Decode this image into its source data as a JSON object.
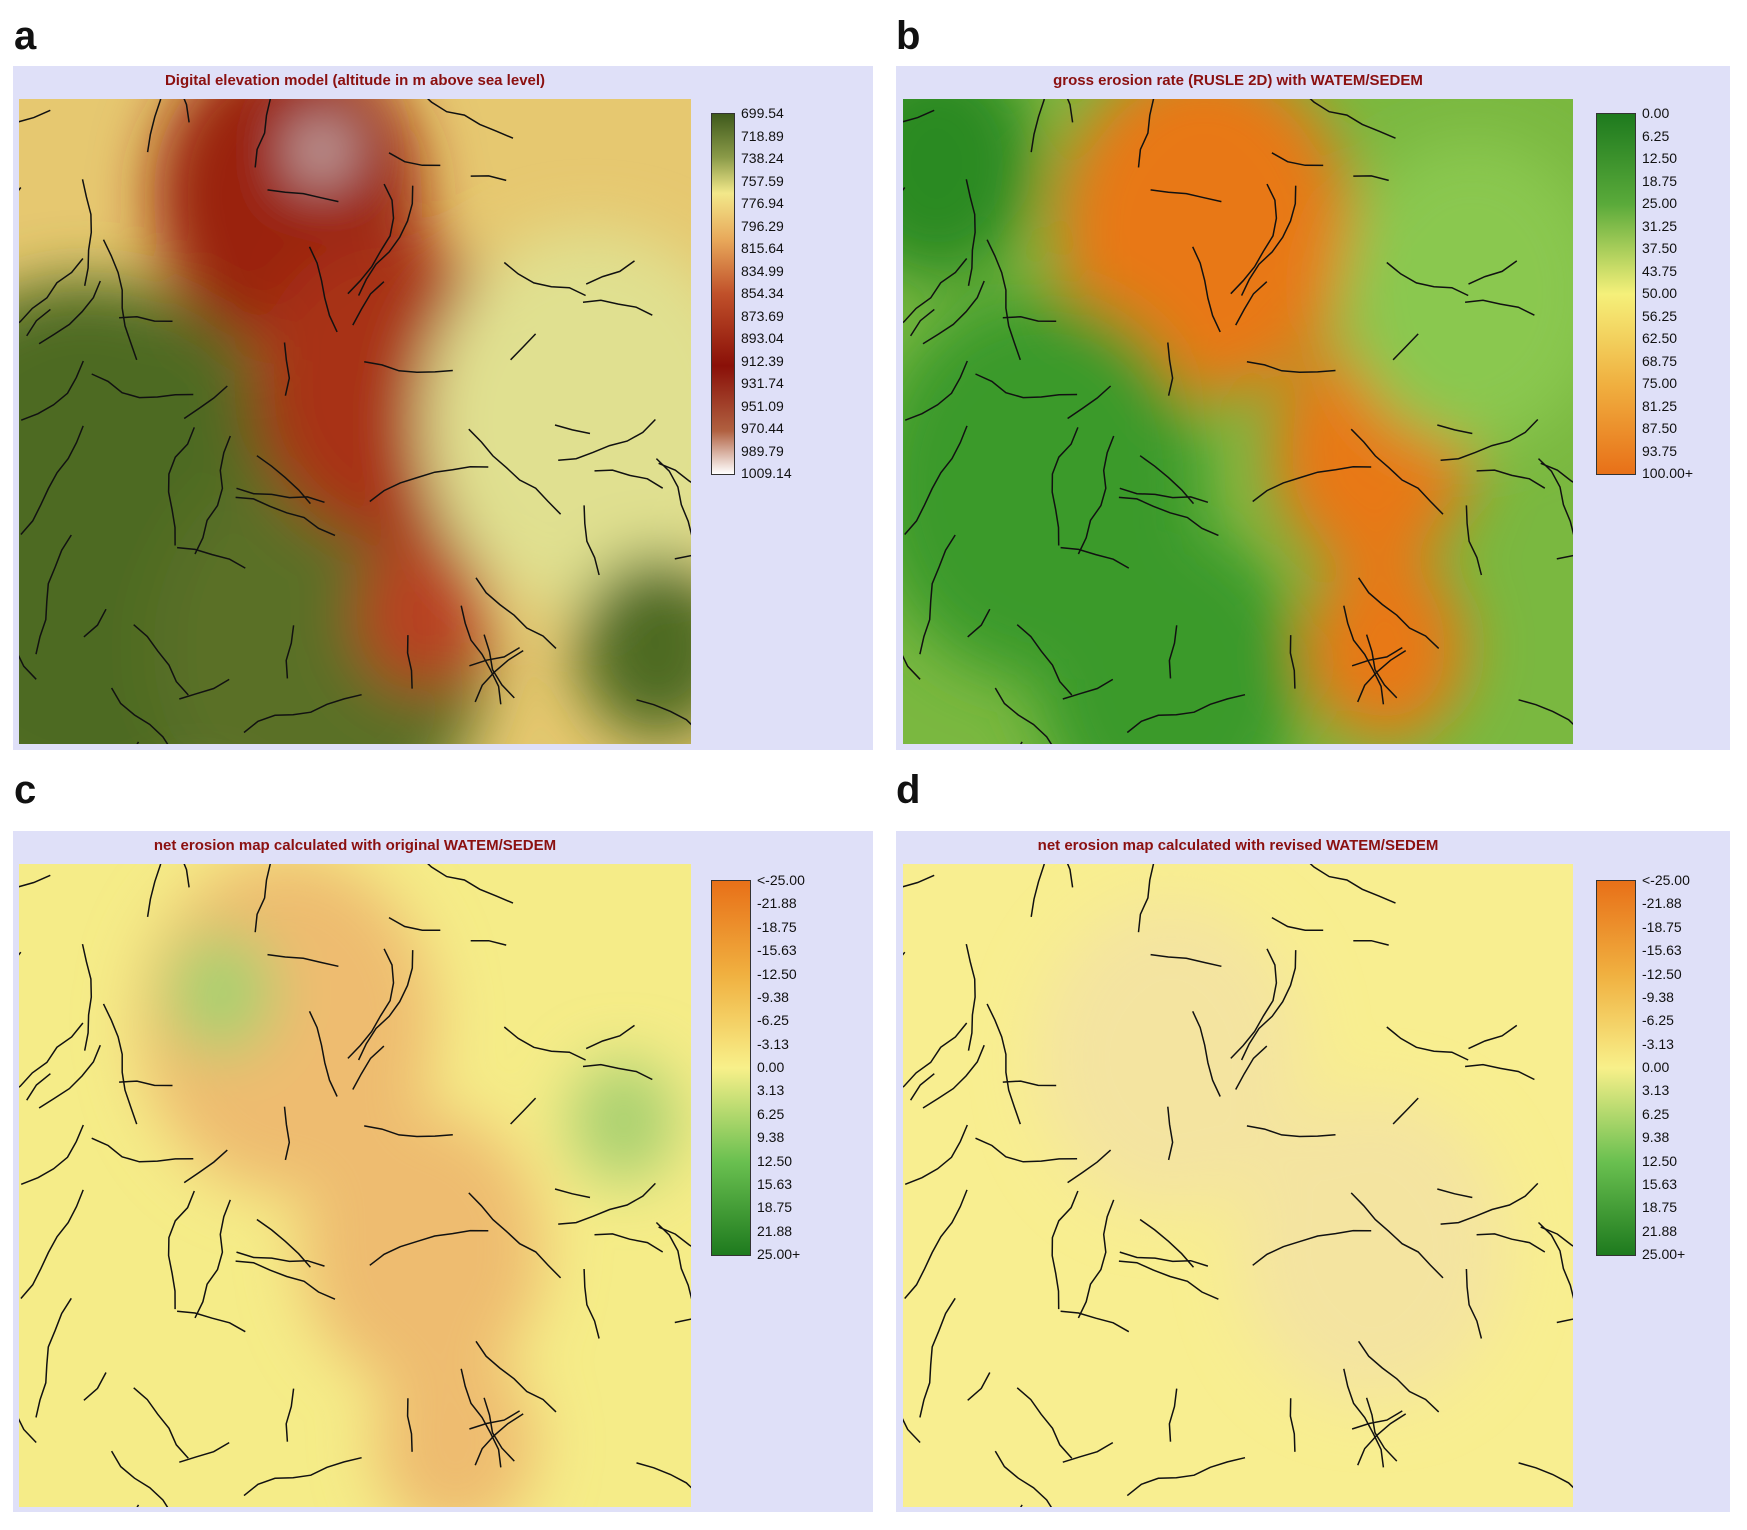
{
  "panels": [
    {
      "letter": "a",
      "title": "Digital elevation model (altitude in m above sea level)",
      "legend": [
        "699.54",
        "718.89",
        "738.24",
        "757.59",
        "776.94",
        "796.29",
        "815.64",
        "834.99",
        "854.34",
        "873.69",
        "893.04",
        "912.39",
        "931.74",
        "951.09",
        "970.44",
        "989.79",
        "1009.14"
      ]
    },
    {
      "letter": "b",
      "title": "gross erosion rate (RUSLE 2D) with WATEM/SEDEM",
      "legend": [
        "0.00",
        "6.25",
        "12.50",
        "18.75",
        "25.00",
        "31.25",
        "37.50",
        "43.75",
        "50.00",
        "56.25",
        "62.50",
        "68.75",
        "75.00",
        "81.25",
        "87.50",
        "93.75",
        "100.00+"
      ]
    },
    {
      "letter": "c",
      "title": "net erosion map calculated with original WATEM/SEDEM",
      "legend": [
        "<-25.00",
        "-21.88",
        "-18.75",
        "-15.63",
        "-12.50",
        "-9.38",
        "-6.25",
        "-3.13",
        "0.00",
        "3.13",
        "6.25",
        "9.38",
        "12.50",
        "15.63",
        "18.75",
        "21.88",
        "25.00+"
      ]
    },
    {
      "letter": "d",
      "title": "net erosion map calculated with revised WATEM/SEDEM",
      "legend": [
        "<-25.00",
        "-21.88",
        "-18.75",
        "-15.63",
        "-12.50",
        "-9.38",
        "-6.25",
        "-3.13",
        "0.00",
        "3.13",
        "6.25",
        "9.38",
        "12.50",
        "15.63",
        "18.75",
        "21.88",
        "25.00+"
      ]
    }
  ]
}
